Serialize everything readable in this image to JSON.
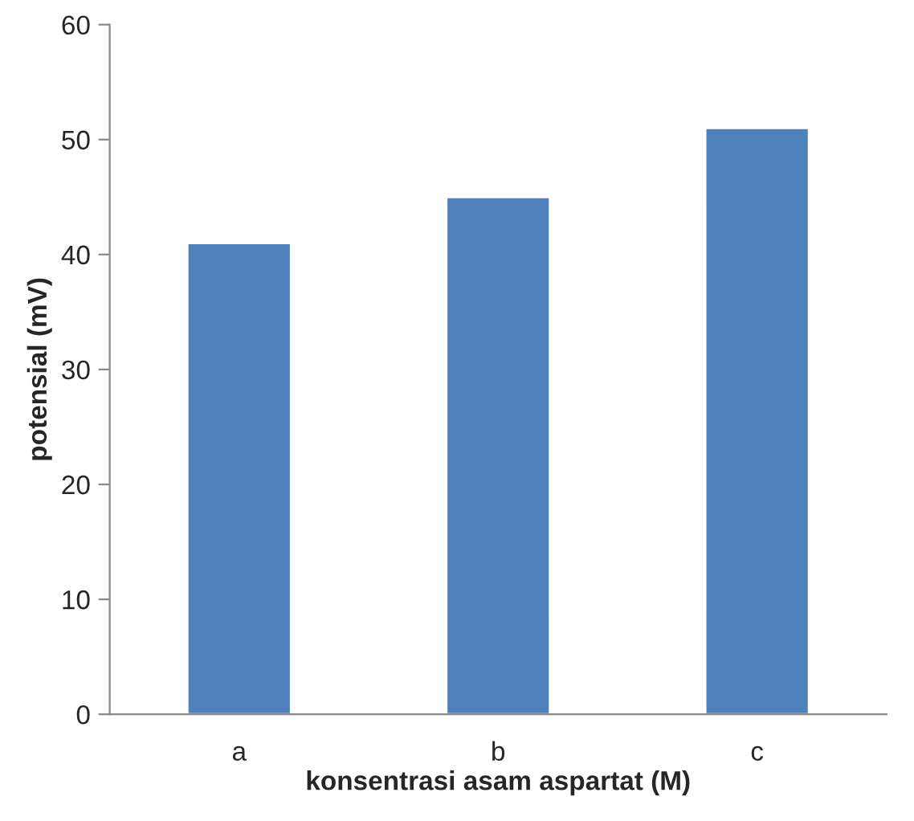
{
  "chart_data": {
    "type": "bar",
    "xlabel": "konsentrasi asam aspartat (M)",
    "ylabel": "potensial (mV)",
    "categories": [
      "a",
      "b",
      "c"
    ],
    "values": [
      41,
      45,
      51
    ],
    "color": "#4f81bd",
    "ylim": [
      0,
      60
    ],
    "yticks": [
      0,
      10,
      20,
      30,
      40,
      50,
      60
    ],
    "grid": false,
    "legend": false
  }
}
